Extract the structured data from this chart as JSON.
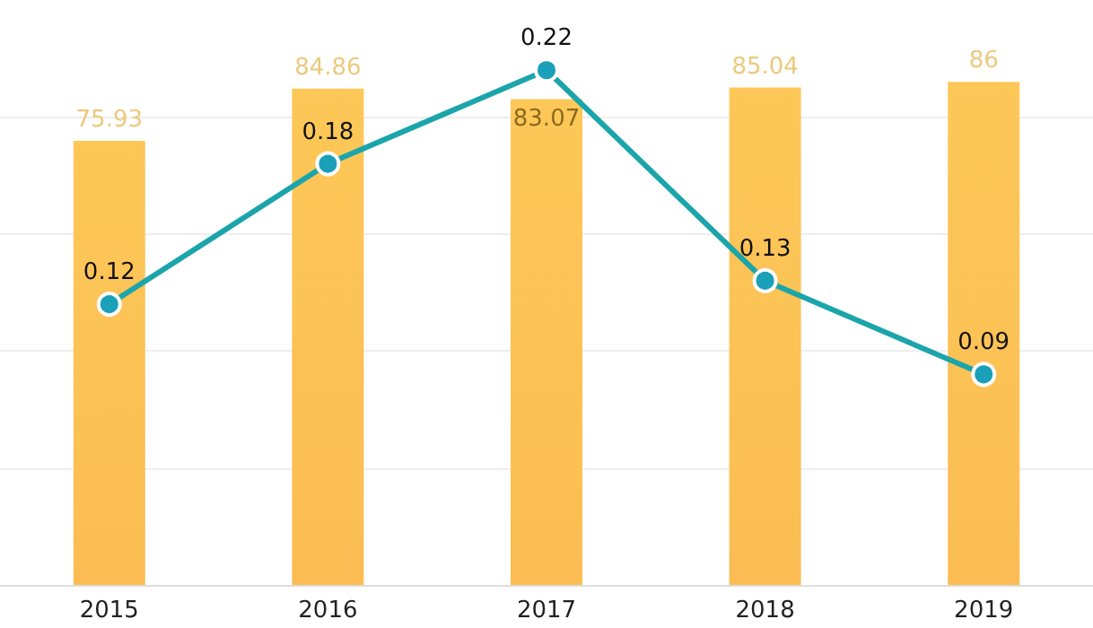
{
  "chart_data": {
    "type": "bar",
    "categories": [
      "2015",
      "2016",
      "2017",
      "2018",
      "2019"
    ],
    "series": [
      {
        "color": "#fdc858",
        "values": [
          75.93,
          84.86,
          83.07,
          85.04,
          86
        ]
      },
      {
        "type": "line",
        "axis": "y2",
        "color": "#1ba5ab",
        "values": [
          0.12,
          0.18,
          0.22,
          0.13,
          0.09
        ]
      }
    ],
    "yticks": [
      {
        "value": 0,
        "label": null
      },
      {
        "value": 20,
        "label": null
      },
      {
        "value": 40,
        "label": null
      },
      {
        "value": 60,
        "label": null
      },
      {
        "value": 80,
        "label": null
      }
    ],
    "tick_labels": "x",
    "grid": "y",
    "data_labels": true,
    "marker": "circle",
    "line_style": "solid"
  }
}
